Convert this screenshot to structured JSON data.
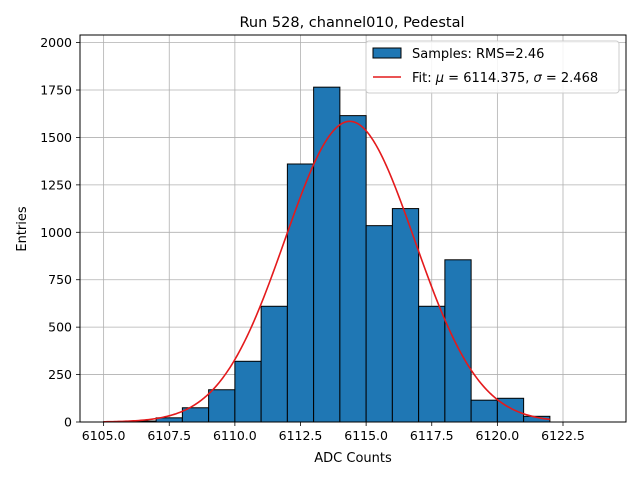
{
  "chart_data": {
    "type": "bar",
    "title": "Run 528, channel010, Pedestal",
    "xlabel": "ADC Counts",
    "ylabel": "Entries",
    "xlim": [
      6104.1,
      6124.9
    ],
    "ylim": [
      0,
      2040
    ],
    "xticks": [
      "6105.0",
      "6107.5",
      "6110.0",
      "6112.5",
      "6115.0",
      "6117.5",
      "6120.0",
      "6122.5"
    ],
    "xtick_values": [
      6105.0,
      6107.5,
      6110.0,
      6112.5,
      6115.0,
      6117.5,
      6120.0,
      6122.5
    ],
    "yticks": [
      "0",
      "250",
      "500",
      "750",
      "1000",
      "1250",
      "1500",
      "1750",
      "2000"
    ],
    "ytick_values": [
      0,
      250,
      500,
      750,
      1000,
      1250,
      1500,
      1750,
      2000
    ],
    "grid": true,
    "legend_position": "top-right",
    "series": [
      {
        "name": "Samples: RMS=2.46",
        "kind": "histogram",
        "color": "#1f77b4",
        "bin_width": 1,
        "bin_starts": [
          6105,
          6106,
          6107,
          6108,
          6109,
          6110,
          6111,
          6112,
          6113,
          6114,
          6115,
          6116,
          6117,
          6118,
          6119,
          6120,
          6121
        ],
        "values": [
          2,
          5,
          22,
          75,
          170,
          320,
          610,
          1360,
          1765,
          1615,
          1035,
          1125,
          610,
          855,
          115,
          125,
          30
        ]
      },
      {
        "name": "Fit: μ = 6114.375, σ = 2.468",
        "legend_prefix": "Fit: ",
        "legend_mu": "μ",
        "legend_mid": " = 6114.375, ",
        "legend_sigma": "σ",
        "legend_suffix": " = 2.468",
        "kind": "gaussian",
        "color": "#e41a1c",
        "mu": 6114.375,
        "sigma": 2.468,
        "amplitude": 1585,
        "x_range": [
          6105,
          6122
        ]
      }
    ]
  }
}
